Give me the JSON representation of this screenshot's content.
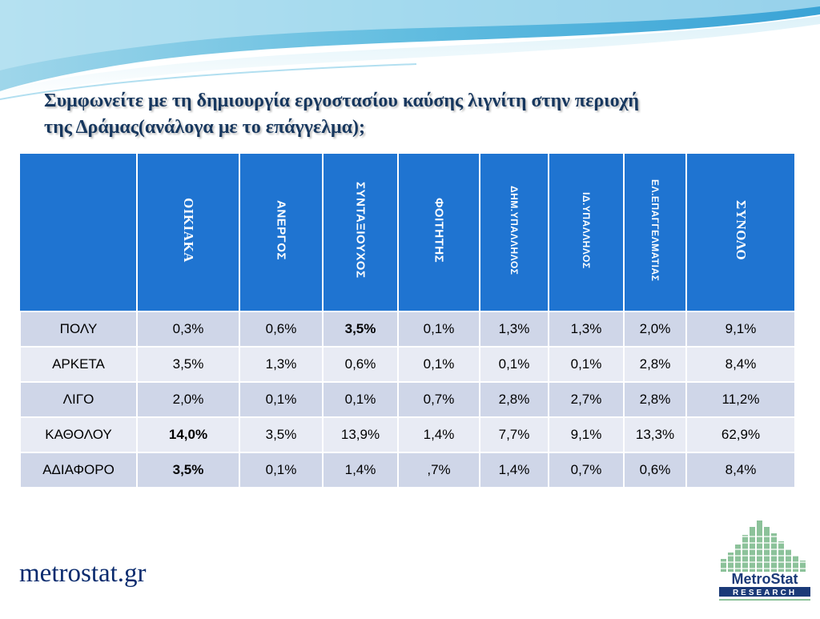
{
  "title": {
    "line1": "Συμφωνείτε με τη δημιουργία εργοστασίου καύσης λιγνίτη στην περιοχή",
    "line2": "της Δράμας(ανάλογα με το επάγγελμα);"
  },
  "table": {
    "headers": [
      "ΟΙΚΙΑΚΑ",
      "ΑΝΕΡΓΟΣ",
      "ΣΥΝΤΑΞΙΟΥΧΟΣ",
      "ΦΟΙΤΗΤΗΣ",
      "ΔΗΜ.ΥΠΑΛΛΗΛΟΣ",
      "ΙΔ.ΥΠΑΛΛΗΛΟΣ",
      "ΕΛ.ΕΠΑΓΓΕΛΜΑΤΙΑΣ",
      "ΣΥΝΟΛΟ"
    ],
    "rows": [
      {
        "label": "ΠΟΛΥ",
        "cells": [
          "0,3%",
          "0,6%",
          "3,5%",
          "0,1%",
          "1,3%",
          "1,3%",
          "2,0%",
          "9,1%"
        ]
      },
      {
        "label": "ΑΡΚΕΤΑ",
        "cells": [
          "3,5%",
          "1,3%",
          "0,6%",
          "0,1%",
          "0,1%",
          "0,1%",
          "2,8%",
          "8,4%"
        ]
      },
      {
        "label": "ΛΙΓΟ",
        "cells": [
          "2,0%",
          "0,1%",
          "0,1%",
          "0,7%",
          "2,8%",
          "2,7%",
          "2,8%",
          "11,2%"
        ]
      },
      {
        "label": "ΚΑΘΟΛΟΥ",
        "cells": [
          "14,0%",
          "3,5%",
          "13,9%",
          "1,4%",
          "7,7%",
          "9,1%",
          "13,3%",
          "62,9%"
        ]
      },
      {
        "label": "ΑΔΙΑΦΟΡΟ",
        "cells": [
          "3,5%",
          "0,1%",
          "1,4%",
          ",7%",
          "1,4%",
          "0,7%",
          "0,6%",
          "8,4%"
        ]
      }
    ]
  },
  "footer": {
    "site": "metrostat.gr",
    "logo_name": "MetroStat",
    "logo_sub": "RESEARCH"
  },
  "colors": {
    "header_blue": "#1f74d1",
    "row_odd": "#cfd6e8",
    "row_even": "#e8ebf4",
    "highlight_red": "#c00000",
    "title_navy": "#17375e"
  }
}
